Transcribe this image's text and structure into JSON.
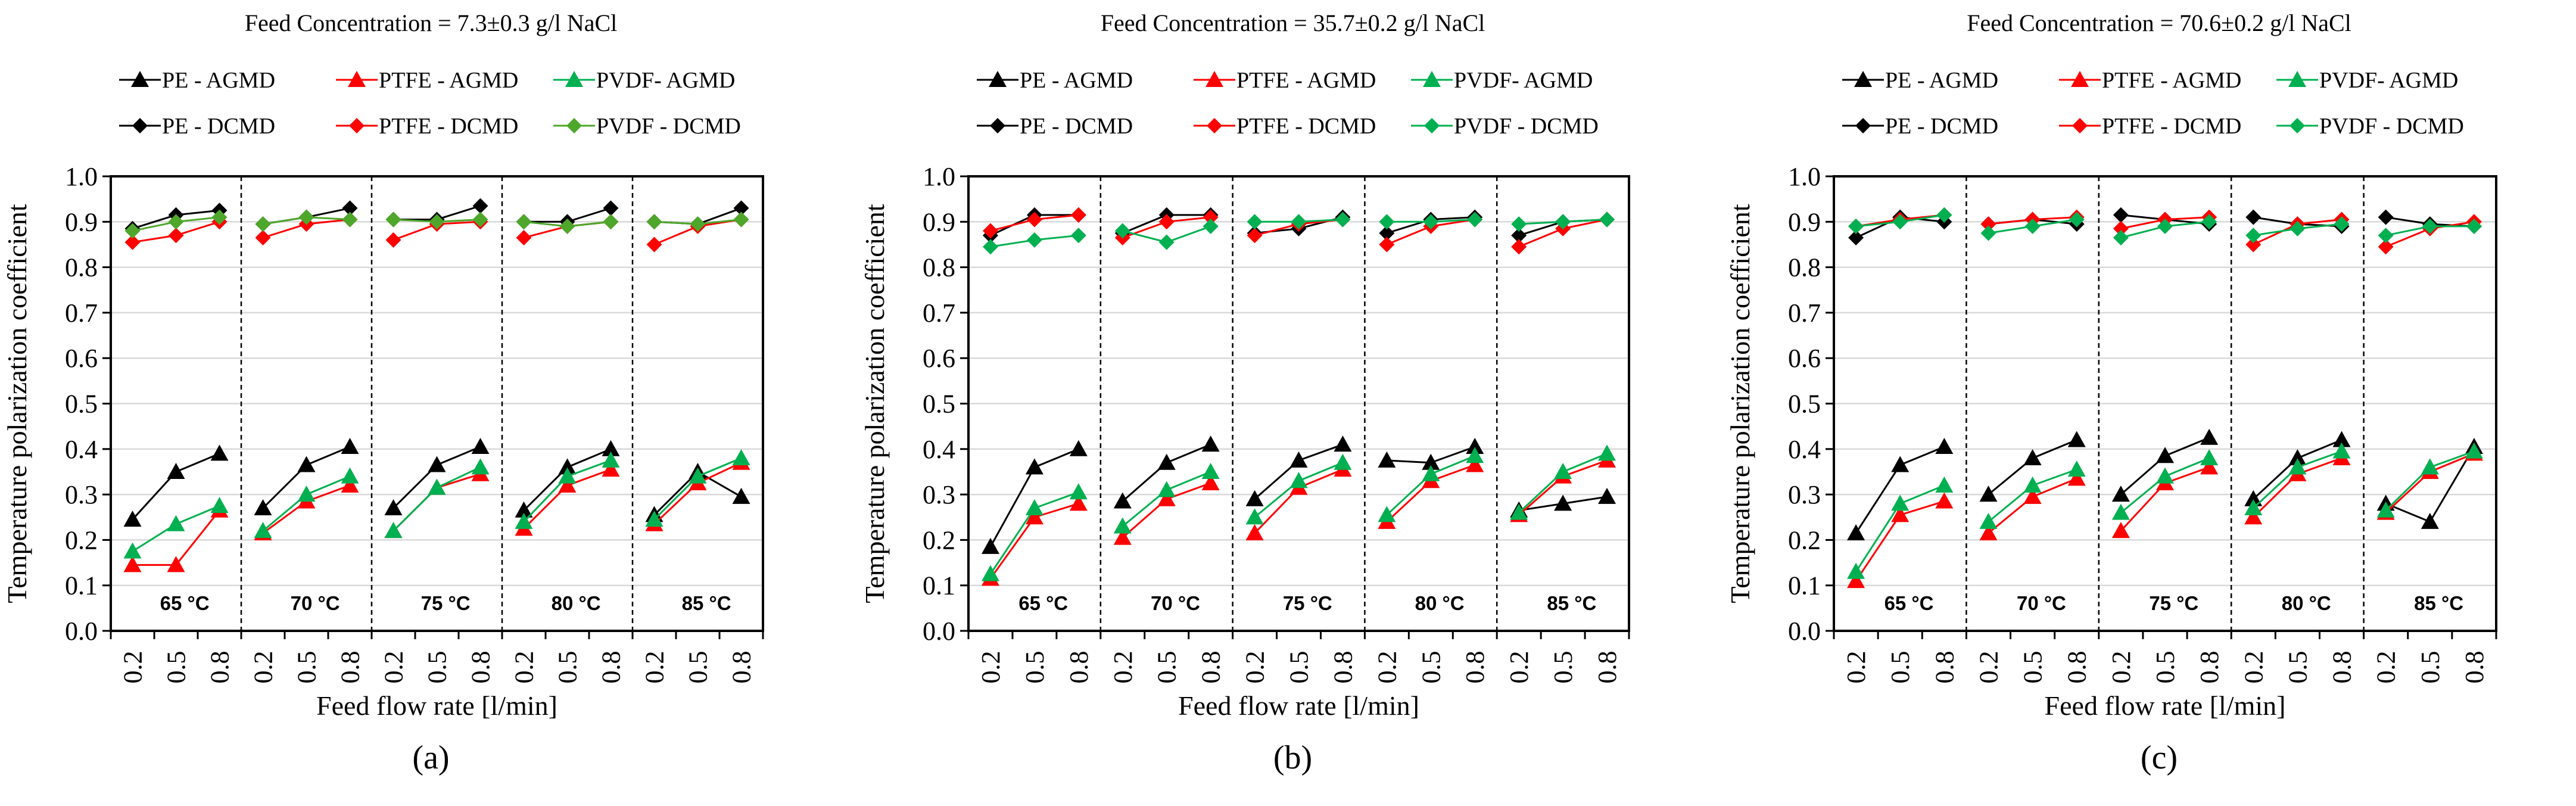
{
  "chart_data": [
    {
      "panel_label": "(a)",
      "type": "line",
      "title": "Feed Concentration  = 7.3±0.3  g/l NaCl",
      "xlabel": "Feed flow rate [l/min]",
      "ylabel": "Temperature  polarization  coefficient",
      "ylim": [
        0,
        1.0
      ],
      "yticks": [
        "0.0",
        "0.1",
        "0.2",
        "0.3",
        "0.4",
        "0.5",
        "0.6",
        "0.7",
        "0.8",
        "0.9",
        "1.0"
      ],
      "grid": true,
      "legend_position": "top",
      "groups": [
        "65 °C",
        "70 °C",
        "75 °C",
        "80 °C",
        "85 °C"
      ],
      "x": [
        "0.2",
        "0.5",
        "0.8"
      ],
      "series": [
        {
          "name": "PE - AGMD",
          "marker": "triangle",
          "color": "#000000",
          "values": [
            [
              0.245,
              0.35,
              0.39
            ],
            [
              0.27,
              0.365,
              0.405
            ],
            [
              0.27,
              0.365,
              0.405
            ],
            [
              0.265,
              0.36,
              0.4
            ],
            [
              0.255,
              0.35,
              0.295
            ]
          ]
        },
        {
          "name": "PTFE - AGMD",
          "marker": "triangle",
          "color": "#ff0000",
          "values": [
            [
              0.145,
              0.145,
              0.265
            ],
            [
              0.215,
              0.285,
              0.32
            ],
            [
              0.22,
              0.315,
              0.345
            ],
            [
              0.225,
              0.32,
              0.355
            ],
            [
              0.235,
              0.325,
              0.37
            ]
          ]
        },
        {
          "name": "PVDF- AGMD",
          "marker": "triangle",
          "color": "#00b050",
          "values": [
            [
              0.175,
              0.235,
              0.275
            ],
            [
              0.22,
              0.3,
              0.34
            ],
            [
              0.22,
              0.315,
              0.36
            ],
            [
              0.24,
              0.34,
              0.375
            ],
            [
              0.245,
              0.34,
              0.38
            ]
          ]
        },
        {
          "name": "PE - DCMD",
          "marker": "diamond",
          "color": "#000000",
          "values": [
            [
              0.885,
              0.915,
              0.925
            ],
            [
              0.895,
              0.91,
              0.93
            ],
            [
              0.905,
              0.905,
              0.935
            ],
            [
              0.9,
              0.9,
              0.93
            ],
            [
              0.9,
              0.895,
              0.93
            ]
          ]
        },
        {
          "name": "PTFE - DCMD",
          "marker": "diamond",
          "color": "#ff0000",
          "values": [
            [
              0.855,
              0.87,
              0.9
            ],
            [
              0.865,
              0.895,
              0.905
            ],
            [
              0.86,
              0.895,
              0.9
            ],
            [
              0.865,
              0.89,
              0.9
            ],
            [
              0.85,
              0.89,
              0.905
            ]
          ]
        },
        {
          "name": "PVDF - DCMD",
          "marker": "diamond",
          "color": "#4ea72a",
          "values": [
            [
              0.88,
              0.9,
              0.91
            ],
            [
              0.895,
              0.91,
              0.905
            ],
            [
              0.905,
              0.9,
              0.905
            ],
            [
              0.9,
              0.89,
              0.9
            ],
            [
              0.9,
              0.895,
              0.905
            ]
          ]
        }
      ]
    },
    {
      "panel_label": "(b)",
      "type": "line",
      "title": "Feed Concentration  = 35.7±0.2  g/l NaCl",
      "xlabel": "Feed flow rate [l/min]",
      "ylabel": "Temperature  polarization  coefficient",
      "ylim": [
        0,
        1.0
      ],
      "yticks": [
        "0.0",
        "0.1",
        "0.2",
        "0.3",
        "0.4",
        "0.5",
        "0.6",
        "0.7",
        "0.8",
        "0.9",
        "1.0"
      ],
      "grid": true,
      "legend_position": "top",
      "groups": [
        "65 °C",
        "70 °C",
        "75 °C",
        "80 °C",
        "85 °C"
      ],
      "x": [
        "0.2",
        "0.5",
        "0.8"
      ],
      "series": [
        {
          "name": "PE - AGMD",
          "marker": "triangle",
          "color": "#000000",
          "values": [
            [
              0.185,
              0.36,
              0.4
            ],
            [
              0.285,
              0.37,
              0.41
            ],
            [
              0.29,
              0.375,
              0.41
            ],
            [
              0.375,
              0.37,
              0.405
            ],
            [
              0.265,
              0.28,
              0.295
            ]
          ]
        },
        {
          "name": "PTFE - AGMD",
          "marker": "triangle",
          "color": "#ff0000",
          "values": [
            [
              0.115,
              0.25,
              0.28
            ],
            [
              0.205,
              0.29,
              0.325
            ],
            [
              0.215,
              0.315,
              0.355
            ],
            [
              0.24,
              0.33,
              0.365
            ],
            [
              0.255,
              0.34,
              0.375
            ]
          ]
        },
        {
          "name": "PVDF- AGMD",
          "marker": "triangle",
          "color": "#00b050",
          "values": [
            [
              0.125,
              0.27,
              0.305
            ],
            [
              0.23,
              0.31,
              0.35
            ],
            [
              0.25,
              0.33,
              0.37
            ],
            [
              0.255,
              0.345,
              0.385
            ],
            [
              0.26,
              0.35,
              0.39
            ]
          ]
        },
        {
          "name": "PE - DCMD",
          "marker": "diamond",
          "color": "#000000",
          "values": [
            [
              0.87,
              0.915,
              0.915
            ],
            [
              0.875,
              0.915,
              0.915
            ],
            [
              0.875,
              0.885,
              0.91
            ],
            [
              0.875,
              0.905,
              0.91
            ],
            [
              0.87,
              0.9,
              0.905
            ]
          ]
        },
        {
          "name": "PTFE - DCMD",
          "marker": "diamond",
          "color": "#ff0000",
          "values": [
            [
              0.88,
              0.905,
              0.915
            ],
            [
              0.865,
              0.9,
              0.91
            ],
            [
              0.87,
              0.895,
              0.905
            ],
            [
              0.85,
              0.89,
              0.905
            ],
            [
              0.845,
              0.885,
              0.905
            ]
          ]
        },
        {
          "name": "PVDF - DCMD",
          "marker": "diamond",
          "color": "#00b050",
          "values": [
            [
              0.845,
              0.86,
              0.87
            ],
            [
              0.88,
              0.855,
              0.89
            ],
            [
              0.9,
              0.9,
              0.905
            ],
            [
              0.9,
              0.9,
              0.905
            ],
            [
              0.895,
              0.9,
              0.905
            ]
          ]
        }
      ]
    },
    {
      "panel_label": "(c)",
      "type": "line",
      "title": "Feed Concentration  = 70.6±0.2  g/l NaCl",
      "xlabel": "Feed flow rate [l/min]",
      "ylabel": "Temperature  polarization  coefficient",
      "ylim": [
        0,
        1.0
      ],
      "yticks": [
        "0.0",
        "0.1",
        "0.2",
        "0.3",
        "0.4",
        "0.5",
        "0.6",
        "0.7",
        "0.8",
        "0.9",
        "1.0"
      ],
      "grid": true,
      "legend_position": "top",
      "groups": [
        "65 °C",
        "70 °C",
        "75 °C",
        "80 °C",
        "85 °C"
      ],
      "x": [
        "0.2",
        "0.5",
        "0.8"
      ],
      "series": [
        {
          "name": "PE - AGMD",
          "marker": "triangle",
          "color": "#000000",
          "values": [
            [
              0.215,
              0.365,
              0.405
            ],
            [
              0.3,
              0.38,
              0.42
            ],
            [
              0.3,
              0.385,
              0.425
            ],
            [
              0.29,
              0.38,
              0.42
            ],
            [
              0.28,
              0.24,
              0.405
            ]
          ]
        },
        {
          "name": "PTFE - AGMD",
          "marker": "triangle",
          "color": "#ff0000",
          "values": [
            [
              0.11,
              0.255,
              0.285
            ],
            [
              0.215,
              0.295,
              0.335
            ],
            [
              0.22,
              0.325,
              0.36
            ],
            [
              0.25,
              0.345,
              0.38
            ],
            [
              0.26,
              0.35,
              0.39
            ]
          ]
        },
        {
          "name": "PVDF- AGMD",
          "marker": "triangle",
          "color": "#00b050",
          "values": [
            [
              0.13,
              0.28,
              0.32
            ],
            [
              0.24,
              0.32,
              0.355
            ],
            [
              0.26,
              0.34,
              0.38
            ],
            [
              0.27,
              0.36,
              0.395
            ],
            [
              0.265,
              0.36,
              0.395
            ]
          ]
        },
        {
          "name": "PE - DCMD",
          "marker": "diamond",
          "color": "#000000",
          "values": [
            [
              0.865,
              0.91,
              0.9
            ],
            [
              0.895,
              0.905,
              0.895
            ],
            [
              0.915,
              0.905,
              0.895
            ],
            [
              0.91,
              0.895,
              0.89
            ],
            [
              0.91,
              0.895,
              0.89
            ]
          ]
        },
        {
          "name": "PTFE - DCMD",
          "marker": "diamond",
          "color": "#ff0000",
          "values": [
            [
              0.89,
              0.905,
              0.915
            ],
            [
              0.895,
              0.905,
              0.91
            ],
            [
              0.885,
              0.905,
              0.91
            ],
            [
              0.85,
              0.895,
              0.905
            ],
            [
              0.845,
              0.885,
              0.9
            ]
          ]
        },
        {
          "name": "PVDF - DCMD",
          "marker": "diamond",
          "color": "#00b050",
          "values": [
            [
              0.89,
              0.9,
              0.915
            ],
            [
              0.875,
              0.89,
              0.905
            ],
            [
              0.865,
              0.89,
              0.9
            ],
            [
              0.87,
              0.885,
              0.895
            ],
            [
              0.87,
              0.89,
              0.89
            ]
          ]
        }
      ]
    }
  ]
}
